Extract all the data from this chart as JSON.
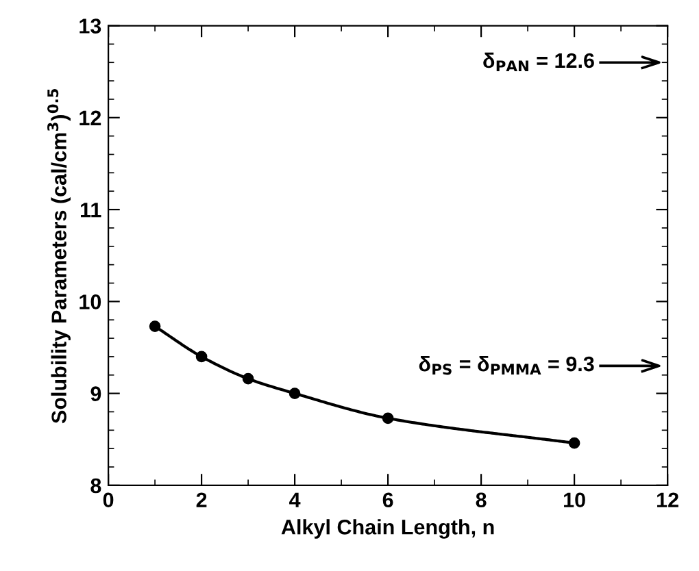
{
  "chart_data": {
    "type": "line",
    "xlabel": "Alkyl Chain Length, n",
    "ylabel": "Solubility Parameters (cal/cm$^{3}$)$^{0.5}$",
    "x": [
      1,
      2,
      3,
      4,
      6,
      10
    ],
    "series": [
      {
        "color": "#000000",
        "values": [
          9.73,
          9.4,
          9.16,
          9.0,
          8.73,
          8.46
        ]
      }
    ],
    "marker": "circle",
    "line_style": "solid",
    "xlim": [
      0,
      12
    ],
    "xticks": [
      0,
      2,
      4,
      6,
      8,
      10,
      12
    ],
    "ylim": [
      8,
      13
    ],
    "yticks": [
      8,
      9,
      10,
      11,
      12,
      13
    ],
    "ref_lines": [
      {
        "axis": "y",
        "value": 12.6,
        "label": "δ$_{PAN}$ = 12.6",
        "color": "#000000"
      },
      {
        "axis": "y",
        "value": 9.3,
        "label": "δ$_{PS}$ = δ$_{PMMA}$ = 9.3",
        "color": "#000000"
      }
    ],
    "grid": false
  }
}
